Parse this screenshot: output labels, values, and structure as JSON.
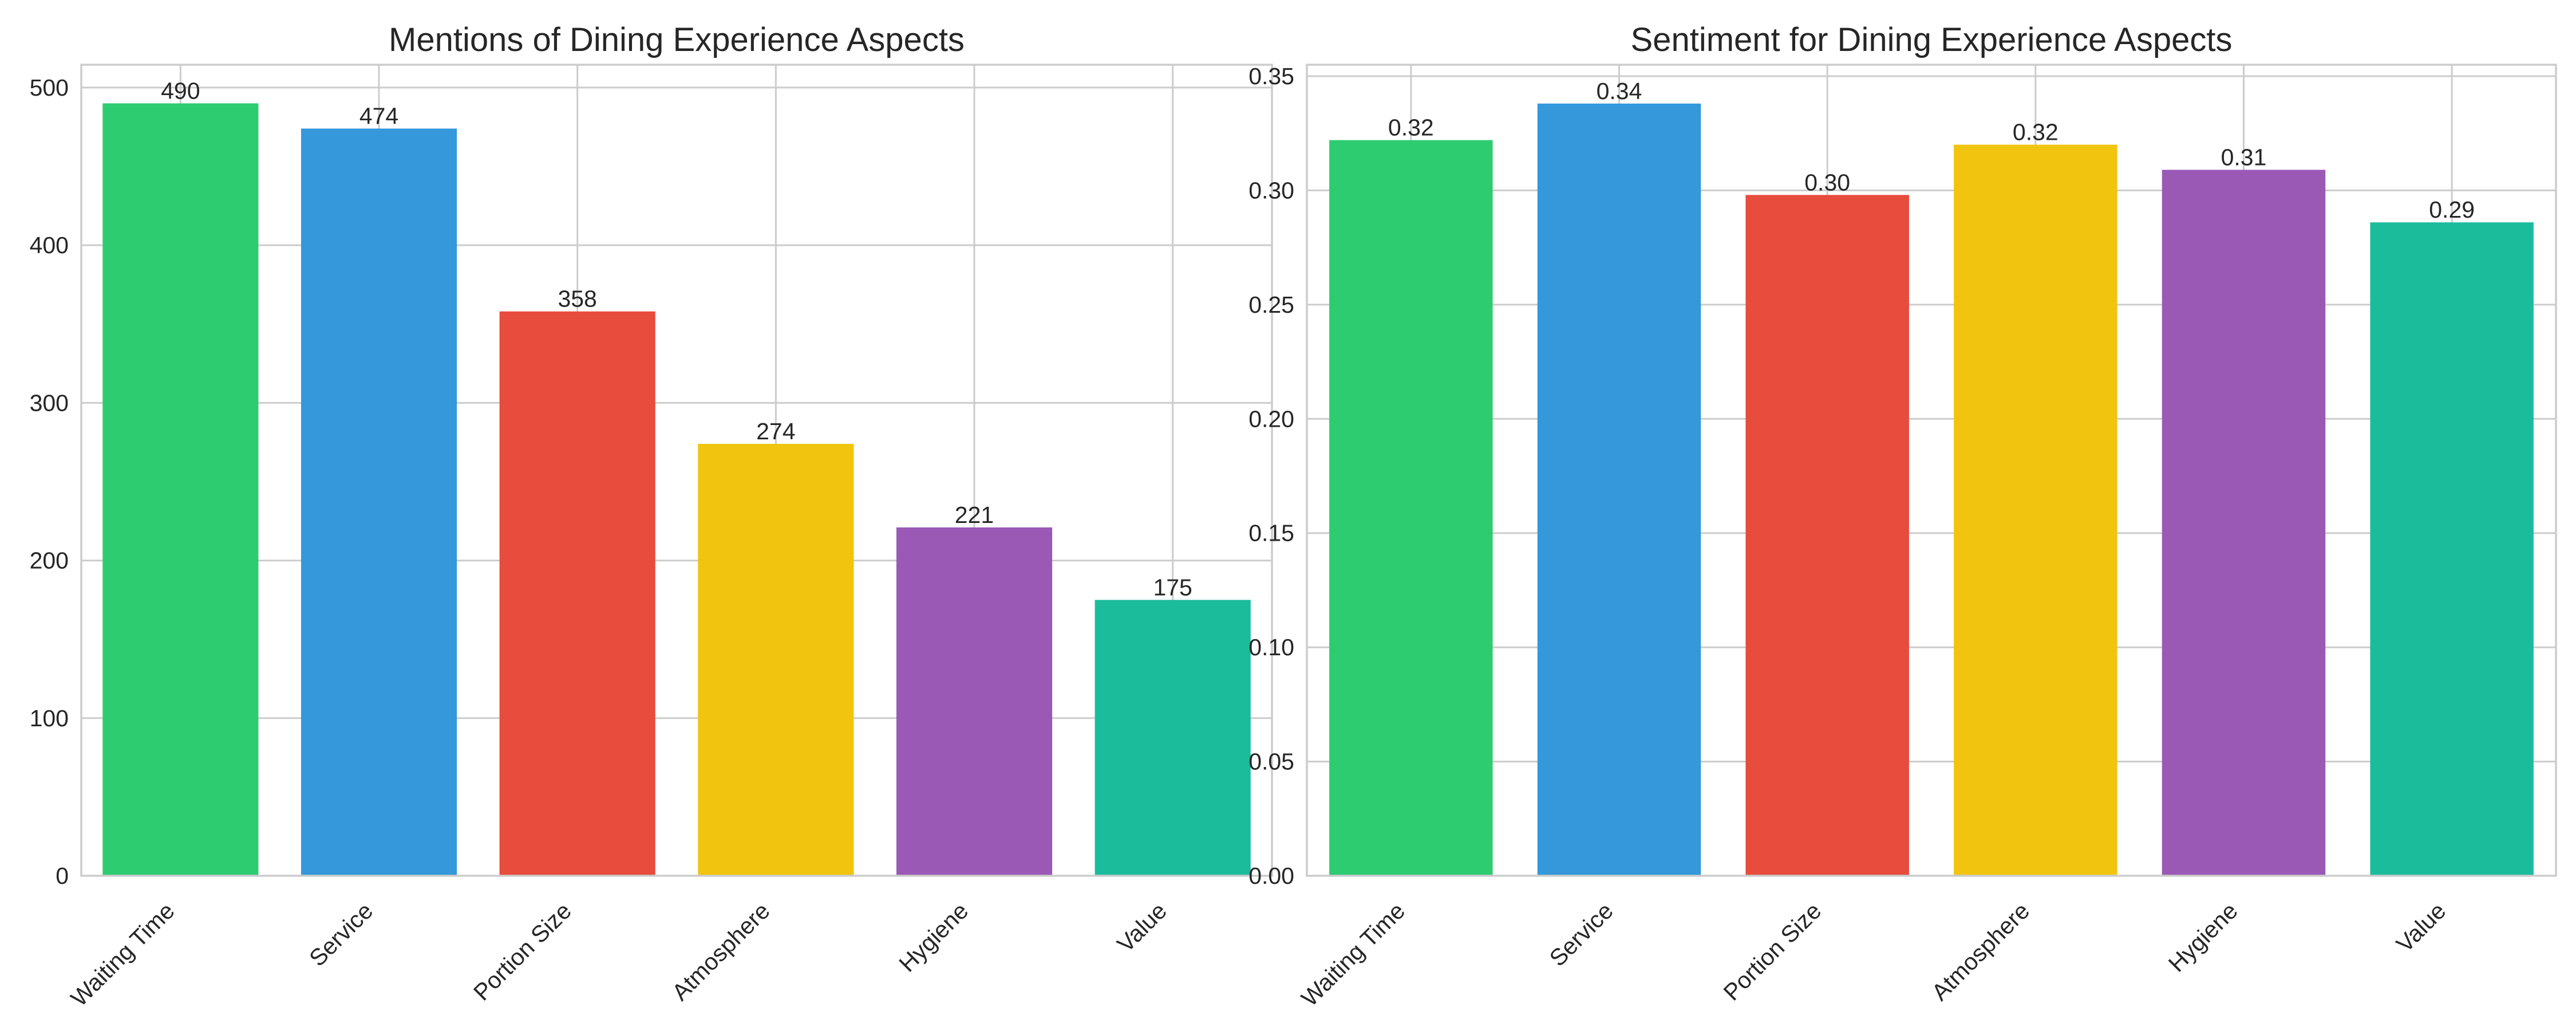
{
  "chart_data": [
    {
      "type": "bar",
      "title": "Mentions of Dining Experience Aspects",
      "xlabel": "",
      "ylabel": "",
      "categories": [
        "Waiting Time",
        "Service",
        "Portion Size",
        "Atmosphere",
        "Hygiene",
        "Value"
      ],
      "values": [
        490,
        474,
        358,
        274,
        221,
        175
      ],
      "value_labels": [
        "490",
        "474",
        "358",
        "274",
        "221",
        "175"
      ],
      "colors": [
        "#2ecc71",
        "#3498db",
        "#e74c3c",
        "#f1c40f",
        "#9b59b6",
        "#1abc9c"
      ],
      "ylim": [
        0,
        514.5
      ],
      "yticks": [
        0,
        100,
        200,
        300,
        400,
        500
      ],
      "ytick_labels": [
        "0",
        "100",
        "200",
        "300",
        "400",
        "500"
      ],
      "grid": true,
      "xtick_rotation": 45
    },
    {
      "type": "bar",
      "title": "Sentiment for Dining Experience Aspects",
      "xlabel": "",
      "ylabel": "",
      "categories": [
        "Waiting Time",
        "Service",
        "Portion Size",
        "Atmosphere",
        "Hygiene",
        "Value"
      ],
      "values": [
        0.322,
        0.338,
        0.298,
        0.32,
        0.309,
        0.286
      ],
      "value_labels": [
        "0.32",
        "0.34",
        "0.30",
        "0.32",
        "0.31",
        "0.29"
      ],
      "colors": [
        "#2ecc71",
        "#3498db",
        "#e74c3c",
        "#f1c40f",
        "#9b59b6",
        "#1abc9c"
      ],
      "ylim": [
        0,
        0.355
      ],
      "yticks": [
        0,
        0.05,
        0.1,
        0.15,
        0.2,
        0.25,
        0.3,
        0.35
      ],
      "ytick_labels": [
        "0.00",
        "0.05",
        "0.10",
        "0.15",
        "0.20",
        "0.25",
        "0.30",
        "0.35"
      ],
      "grid": true,
      "xtick_rotation": 45
    }
  ]
}
